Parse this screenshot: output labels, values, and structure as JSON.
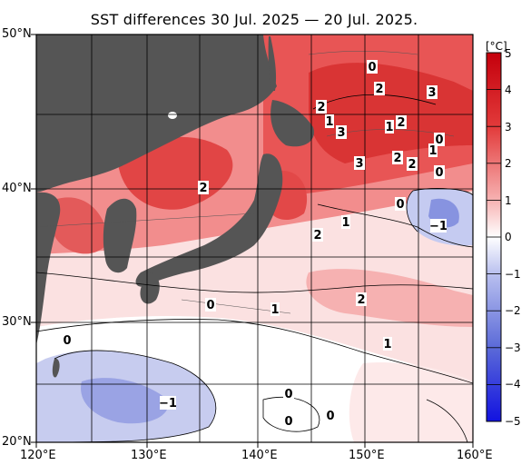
{
  "title": "SST differences 30 Jul. 2025 — 20 Jul. 2025.",
  "unit": "[°C]",
  "lat_labels": [
    "50°N",
    "40°N",
    "30°N",
    "20°N"
  ],
  "lon_labels": [
    "120°E",
    "130°E",
    "140°E",
    "150°E",
    "160°E"
  ],
  "colorbar_ticks": [
    "5",
    "4",
    "3",
    "2",
    "1",
    "0",
    "−1",
    "−2",
    "−3",
    "−4",
    "−5"
  ],
  "contour_labels": [
    "0",
    "2",
    "3",
    "2",
    "1",
    "3",
    "1",
    "2",
    "0",
    "1",
    "3",
    "2",
    "2",
    "0",
    "2",
    "1",
    "2",
    "0",
    "−1",
    "2",
    "0",
    "1",
    "1",
    "0",
    "−1",
    "0",
    "0",
    "0"
  ],
  "colors": {
    "land": "#555555",
    "warm": "#e23a3a",
    "cool": "#4d5fd6",
    "neutral": "#ffffff"
  }
}
